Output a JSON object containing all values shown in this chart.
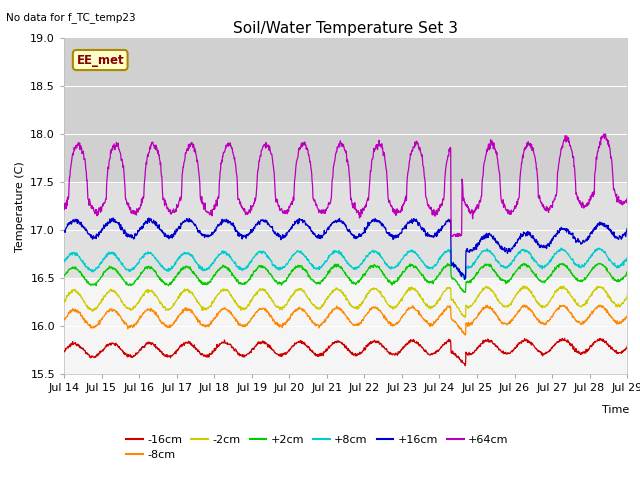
{
  "title": "Soil/Water Temperature Set 3",
  "no_data_label": "No data for f_TC_temp23",
  "xlabel": "Time",
  "ylabel": "Temperature (C)",
  "ylim": [
    15.5,
    19.0
  ],
  "yticks": [
    15.5,
    16.0,
    16.5,
    17.0,
    17.5,
    18.0,
    18.5,
    19.0
  ],
  "x_tick_labels": [
    "Jul 14",
    "Jul 15",
    "Jul 16",
    "Jul 17",
    "Jul 18",
    "Jul 19",
    "Jul 20",
    "Jul 21",
    "Jul 22",
    "Jul 23",
    "Jul 24",
    "Jul 25",
    "Jul 26",
    "Jul 27",
    "Jul 28",
    "Jul 29"
  ],
  "ee_met_label": "EE_met",
  "series_labels": [
    "-16cm",
    "-8cm",
    "-2cm",
    "+2cm",
    "+8cm",
    "+16cm",
    "+64cm"
  ],
  "series_colors": [
    "#cc0000",
    "#ff8800",
    "#cccc00",
    "#00cc00",
    "#00cccc",
    "#0000cc",
    "#bb00bb"
  ],
  "series_bases": [
    15.75,
    16.08,
    16.27,
    16.52,
    16.67,
    17.02,
    17.35
  ],
  "series_amps": [
    0.07,
    0.09,
    0.1,
    0.09,
    0.09,
    0.085,
    0.55
  ],
  "shaded_band_lo": 17.5,
  "shaded_band_hi": 19.0,
  "shaded_band2_lo": 16.5,
  "shaded_band2_hi": 17.5,
  "n_days": 15,
  "n_points": 1440,
  "background_color": "#f5f5f5",
  "grid_color": "#ffffff",
  "legend_colors": [
    "#cc0000",
    "#ff8800",
    "#cccc00",
    "#00cc00",
    "#00cccc",
    "#0000cc",
    "#bb00bb"
  ],
  "legend_labels": [
    "-16cm",
    "-8cm",
    "-2cm",
    "+2cm",
    "+8cm",
    "+16cm",
    "+64cm"
  ]
}
